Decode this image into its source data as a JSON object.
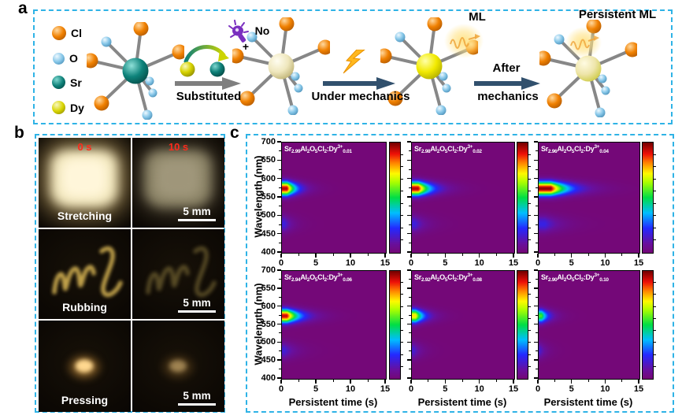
{
  "figure": {
    "panel_labels": {
      "a": "a",
      "b": "b",
      "c": "c"
    }
  },
  "colors": {
    "frame_dash_cyan": "#2fb3e6",
    "time_label_red": "#ff2a1c",
    "heatmap_background_purple": "#740878",
    "cl_orange": "#f08000",
    "o_lightblue": "#85c6e8",
    "sr_teal": "#0e8078",
    "dy_yellow": "#d8d400",
    "ml_glow_yellow": "#ffe282",
    "mechanics_arrow_navy": "#31506d",
    "substituted_arrow_gray": "#7f7f7f"
  },
  "panel_a": {
    "label": "a",
    "legend": [
      {
        "symbol": "Cl",
        "color": "#f08000"
      },
      {
        "symbol": "O",
        "color": "#85c6e8"
      },
      {
        "symbol": "Sr",
        "color": "#0e8078"
      },
      {
        "symbol": "Dy",
        "color": "#d8d400"
      }
    ],
    "no_uv_label": "No",
    "plus_sign": "+",
    "arrow1_label": "Substituted",
    "arrow2_label": "Under mechanics",
    "arrow3_label_line1": "After",
    "arrow3_label_line2": "mechanics",
    "ml_label": "ML",
    "persistent_ml_label": "Persistent ML"
  },
  "panel_b": {
    "label": "b",
    "time_labels": [
      "0 s",
      "10 s"
    ],
    "rows": [
      {
        "action": "Stretching",
        "scale": "5 mm"
      },
      {
        "action": "Rubbing",
        "scale": "5 mm"
      },
      {
        "action": "Pressing",
        "scale": "5 mm"
      }
    ]
  },
  "panel_c": {
    "label": "c"
  },
  "chart_data": {
    "type": "heatmap",
    "layout": {
      "rows": 2,
      "cols": 3,
      "legend_position": "colorbar right of each panel"
    },
    "xlabel": "Persistent time (s)",
    "ylabel": "Wavelength (nm)",
    "xlim": [
      0,
      15
    ],
    "xticks": [
      0,
      5,
      10,
      15
    ],
    "ylim": [
      400,
      700
    ],
    "yticks": [
      400,
      450,
      500,
      550,
      600,
      650,
      700
    ],
    "grid": false,
    "colormap_description": "rainbow: purple(low) -> blue -> cyan -> green -> yellow -> orange -> red -> dark red(high)",
    "panels": [
      {
        "formula_plain": "Sr2.99Al2O5Cl2:Dy3+0.01",
        "sr_sub": "2.99",
        "dy_sub": "0.01",
        "emission_peak_nm": 575,
        "secondary_band_nm": 478,
        "peak_intensity": 0.95,
        "secondary_intensity": 0.17,
        "plateau_s": 0.7,
        "decay_tau_s": 1.3,
        "afterglow_visible_s": 6
      },
      {
        "formula_plain": "Sr2.98Al2O5Cl2:Dy3+0.02",
        "sr_sub": "2.98",
        "dy_sub": "0.02",
        "emission_peak_nm": 575,
        "secondary_band_nm": 478,
        "peak_intensity": 0.95,
        "secondary_intensity": 0.17,
        "plateau_s": 0.9,
        "decay_tau_s": 1.8,
        "afterglow_visible_s": 9
      },
      {
        "formula_plain": "Sr2.96Al2O5Cl2:Dy3+0.04",
        "sr_sub": "2.96",
        "dy_sub": "0.04",
        "emission_peak_nm": 575,
        "secondary_band_nm": 478,
        "peak_intensity": 0.98,
        "secondary_intensity": 0.18,
        "plateau_s": 1.8,
        "decay_tau_s": 2.5,
        "afterglow_visible_s": 13
      },
      {
        "formula_plain": "Sr2.94Al2O5Cl2:Dy3+0.06",
        "sr_sub": "2.94",
        "dy_sub": "0.06",
        "emission_peak_nm": 575,
        "secondary_band_nm": 478,
        "peak_intensity": 0.93,
        "secondary_intensity": 0.16,
        "plateau_s": 0.7,
        "decay_tau_s": 1.8,
        "afterglow_visible_s": 9
      },
      {
        "formula_plain": "Sr2.92Al2O5Cl2:Dy3+0.08",
        "sr_sub": "2.92",
        "dy_sub": "0.08",
        "emission_peak_nm": 575,
        "secondary_band_nm": 478,
        "peak_intensity": 0.74,
        "secondary_intensity": 0.15,
        "plateau_s": 0.5,
        "decay_tau_s": 1.3,
        "afterglow_visible_s": 6
      },
      {
        "formula_plain": "Sr2.90Al2O5Cl2:Dy3+0.10",
        "sr_sub": "2.90",
        "dy_sub": "0.10",
        "emission_peak_nm": 575,
        "secondary_band_nm": 478,
        "peak_intensity": 0.55,
        "secondary_intensity": 0.14,
        "plateau_s": 0.4,
        "decay_tau_s": 1.1,
        "afterglow_visible_s": 5
      }
    ],
    "formula_constant_parts": {
      "el1": "Sr",
      "mid": "Al2O5Cl2:Dy",
      "charge_sup": "3+"
    }
  }
}
